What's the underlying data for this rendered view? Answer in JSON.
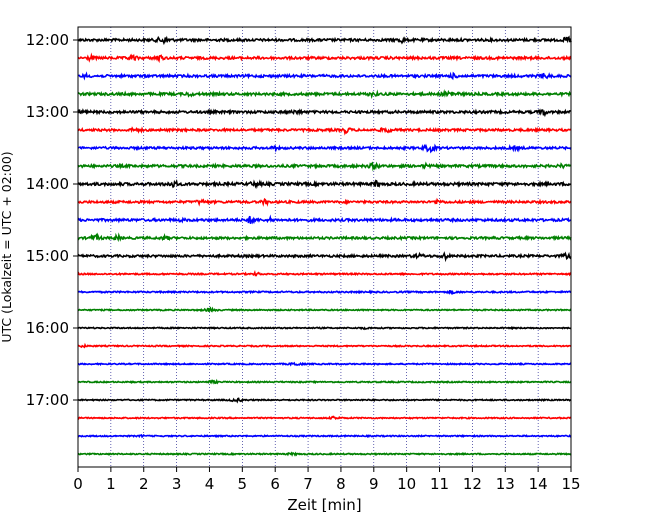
{
  "chart_data": {
    "type": "line",
    "title": "",
    "xlabel": "Zeit  [min]",
    "ylabel": "UTC (Lokalzeit = UTC + 02:00)",
    "xlim": [
      0,
      15
    ],
    "x_ticks": [
      "0",
      "1",
      "2",
      "3",
      "4",
      "5",
      "6",
      "7",
      "8",
      "9",
      "10",
      "11",
      "12",
      "13",
      "14",
      "15"
    ],
    "y_ticks": [
      "12:00",
      "13:00",
      "14:00",
      "15:00",
      "16:00",
      "17:00"
    ],
    "grid": "vertical dotted at each minute",
    "line_colors": [
      "#000000",
      "#ff0000",
      "#0000ff",
      "#008000"
    ],
    "series": [
      {
        "start": "12:00",
        "amplitude": 1.0
      },
      {
        "start": "12:15",
        "amplitude": 1.0
      },
      {
        "start": "12:30",
        "amplitude": 1.0
      },
      {
        "start": "12:45",
        "amplitude": 1.0
      },
      {
        "start": "13:00",
        "amplitude": 1.0
      },
      {
        "start": "13:15",
        "amplitude": 0.9
      },
      {
        "start": "13:30",
        "amplitude": 0.9
      },
      {
        "start": "13:45",
        "amplitude": 1.0
      },
      {
        "start": "14:00",
        "amplitude": 1.1
      },
      {
        "start": "14:15",
        "amplitude": 0.9
      },
      {
        "start": "14:30",
        "amplitude": 1.0
      },
      {
        "start": "14:45",
        "amplitude": 0.9
      },
      {
        "start": "15:00",
        "amplitude": 0.9
      },
      {
        "start": "15:15",
        "amplitude": 0.6
      },
      {
        "start": "15:30",
        "amplitude": 0.6
      },
      {
        "start": "15:45",
        "amplitude": 0.5
      },
      {
        "start": "16:00",
        "amplitude": 0.5
      },
      {
        "start": "16:15",
        "amplitude": 0.5
      },
      {
        "start": "16:30",
        "amplitude": 0.5
      },
      {
        "start": "16:45",
        "amplitude": 0.5
      },
      {
        "start": "17:00",
        "amplitude": 0.5
      },
      {
        "start": "17:15",
        "amplitude": 0.5
      },
      {
        "start": "17:30",
        "amplitude": 0.5
      },
      {
        "start": "17:45",
        "amplitude": 0.5
      }
    ]
  }
}
